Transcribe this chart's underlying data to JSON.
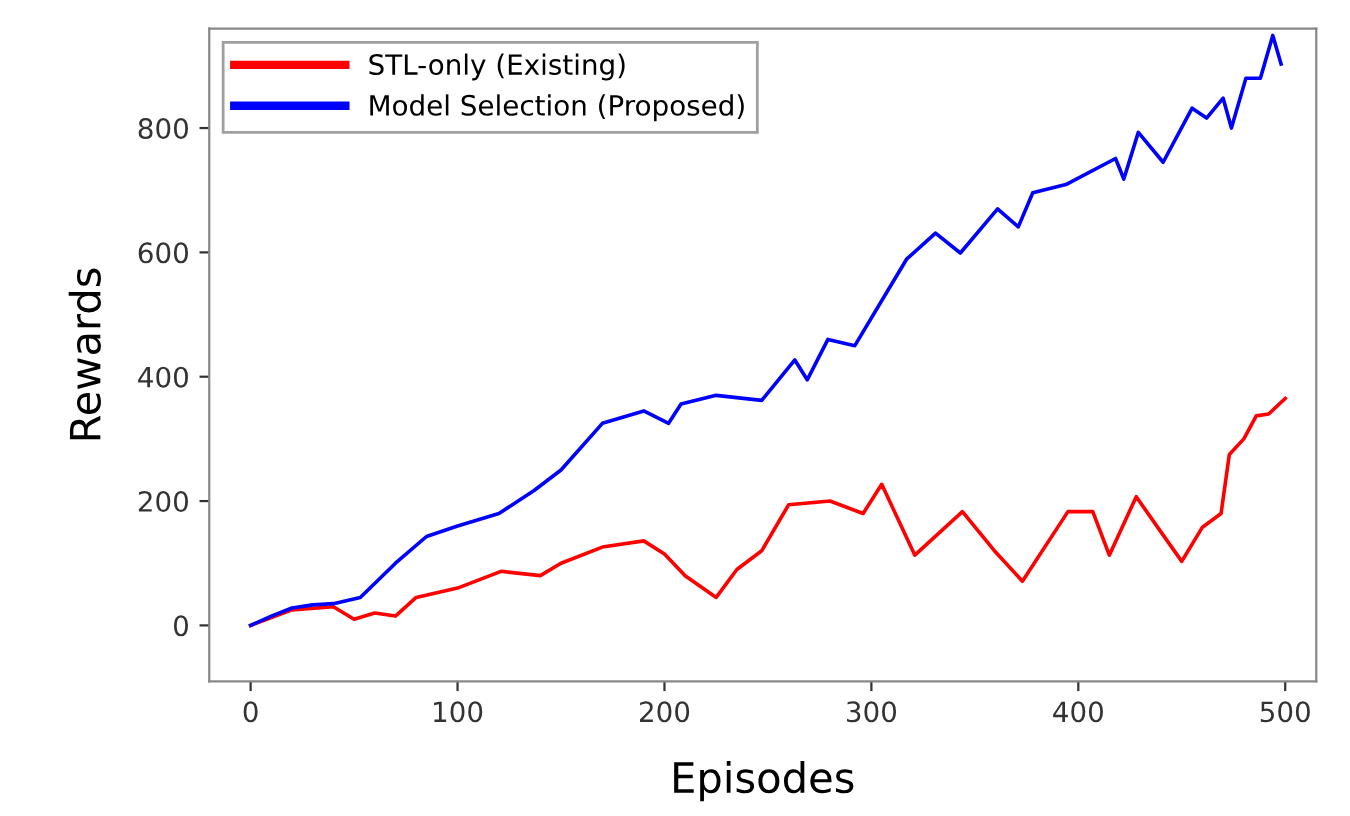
{
  "chart_data": {
    "type": "line",
    "xlabel": "Episodes",
    "ylabel": "Rewards",
    "xlim": [
      -20,
      515
    ],
    "ylim": [
      -90,
      960
    ],
    "xticks": [
      0,
      100,
      200,
      300,
      400,
      500
    ],
    "yticks": [
      0,
      200,
      400,
      600,
      800
    ],
    "grid": false,
    "legend": "top left",
    "line_style": "solid",
    "marker": "none",
    "series": [
      {
        "name": "STL-only (Existing)",
        "color": "#ff0000",
        "x": [
          0,
          20,
          40,
          50,
          60,
          70,
          80,
          100,
          121,
          140,
          150,
          170,
          190,
          200,
          210,
          225,
          235,
          247,
          260,
          280,
          296,
          305,
          321,
          344,
          360,
          373,
          395,
          407,
          415,
          428,
          440,
          450,
          460,
          469,
          473,
          480,
          486,
          492,
          500
        ],
        "values": [
          0,
          25,
          30,
          10,
          20,
          15,
          45,
          60,
          87,
          80,
          100,
          126,
          136,
          115,
          80,
          45,
          90,
          120,
          194,
          200,
          180,
          227,
          113,
          183,
          118,
          71,
          183,
          183,
          113,
          207,
          150,
          103,
          158,
          180,
          275,
          300,
          337,
          340,
          365
        ]
      },
      {
        "name": "Model Selection (Proposed)",
        "color": "#0000ff",
        "x": [
          0,
          10,
          20,
          30,
          40,
          53,
          70,
          85,
          100,
          120,
          137,
          150,
          170,
          190,
          202,
          208,
          225,
          247,
          263,
          269,
          279,
          292,
          317,
          331,
          343,
          361,
          371,
          378,
          394,
          418,
          422,
          429,
          441,
          455,
          462,
          470,
          474,
          481,
          488,
          494,
          498
        ],
        "values": [
          0,
          15,
          28,
          33,
          35,
          45,
          100,
          143,
          160,
          180,
          217,
          250,
          325,
          345,
          325,
          356,
          370,
          362,
          427,
          395,
          460,
          450,
          589,
          631,
          599,
          670,
          641,
          696,
          709,
          751,
          718,
          793,
          745,
          832,
          816,
          848,
          800,
          880,
          880,
          949,
          903
        ]
      }
    ]
  }
}
